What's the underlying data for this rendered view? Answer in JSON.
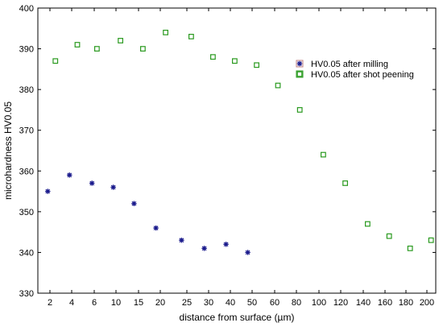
{
  "chart_data": {
    "type": "scatter",
    "xlabel": "distance from surface (µm)",
    "ylabel": "microhardness HV0.05",
    "ylim": [
      330,
      400
    ],
    "yticks": [
      330,
      340,
      350,
      360,
      370,
      380,
      390,
      400
    ],
    "x_categories": [
      "2",
      "4",
      "6",
      "10",
      "15",
      "20",
      "25",
      "30",
      "40",
      "50",
      "60",
      "80",
      "100",
      "120",
      "140",
      "160",
      "180",
      "200"
    ],
    "grid": false,
    "legend_position": "top-right",
    "series": [
      {
        "name": "HV0.05 after milling",
        "marker": "asterisk",
        "color": "#1a1a8c",
        "points": [
          {
            "x": 1.8,
            "y": 355
          },
          {
            "x": 3.8,
            "y": 359
          },
          {
            "x": 5.8,
            "y": 357
          },
          {
            "x": 9.5,
            "y": 356
          },
          {
            "x": 14,
            "y": 352
          },
          {
            "x": 19,
            "y": 346
          },
          {
            "x": 24,
            "y": 343
          },
          {
            "x": 29,
            "y": 341
          },
          {
            "x": 38,
            "y": 342
          },
          {
            "x": 48,
            "y": 340
          }
        ]
      },
      {
        "name": "HV0.05 after shot peening",
        "marker": "square",
        "color": "#2a9a1f",
        "points": [
          {
            "x": 2.5,
            "y": 387
          },
          {
            "x": 4.5,
            "y": 391
          },
          {
            "x": 6.5,
            "y": 390
          },
          {
            "x": 11,
            "y": 392
          },
          {
            "x": 16,
            "y": 390
          },
          {
            "x": 21,
            "y": 394
          },
          {
            "x": 26,
            "y": 393
          },
          {
            "x": 32,
            "y": 388
          },
          {
            "x": 42,
            "y": 387
          },
          {
            "x": 52,
            "y": 386
          },
          {
            "x": 63,
            "y": 381
          },
          {
            "x": 83,
            "y": 375
          },
          {
            "x": 104,
            "y": 364
          },
          {
            "x": 124,
            "y": 357
          },
          {
            "x": 144,
            "y": 347
          },
          {
            "x": 164,
            "y": 344
          },
          {
            "x": 184,
            "y": 341
          },
          {
            "x": 204,
            "y": 343
          }
        ]
      }
    ]
  }
}
